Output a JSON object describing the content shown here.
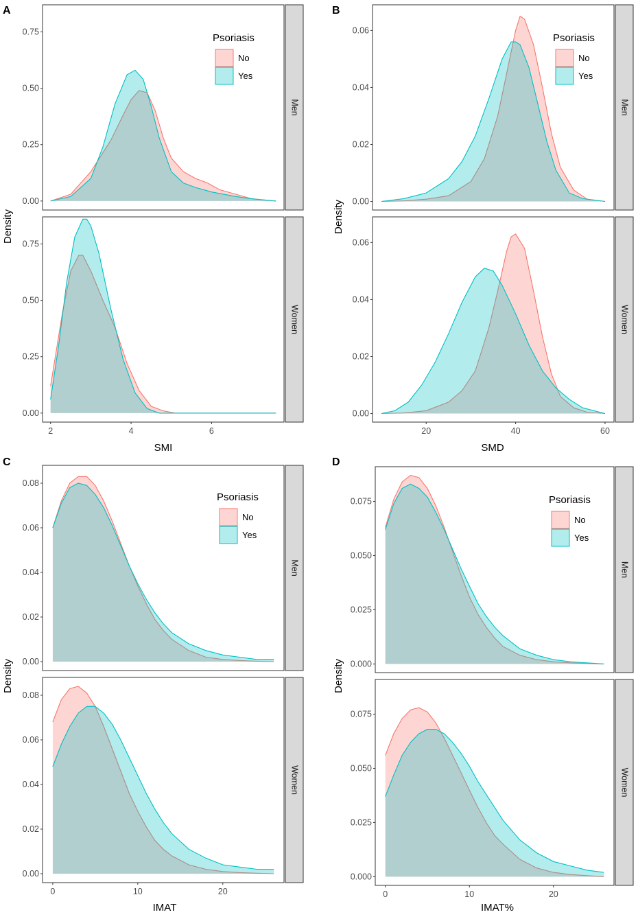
{
  "colors": {
    "no": "#F8766D",
    "yes": "#00BFC4",
    "strip": "#D9D9D9"
  },
  "legend": {
    "title": "Psoriasis",
    "entries": [
      "No",
      "Yes"
    ]
  },
  "ylabel": "Density",
  "chart_data": [
    {
      "panel": "A",
      "type": "area",
      "xlabel": "SMI",
      "xticks": [
        2,
        4,
        6
      ],
      "xlim": [
        1.8,
        7.8
      ],
      "show_legend": true,
      "facets": [
        {
          "strip": "Men",
          "ylim": [
            -0.04,
            0.87
          ],
          "yticks": [
            0.0,
            0.25,
            0.5,
            0.75
          ],
          "decimals": 2,
          "series": [
            {
              "name": "No",
              "x": [
                2.0,
                2.5,
                3.0,
                3.5,
                3.8,
                4.0,
                4.2,
                4.4,
                4.6,
                4.8,
                5.0,
                5.3,
                5.6,
                5.9,
                6.2,
                6.6,
                7.0,
                7.6
              ],
              "y": [
                0.0,
                0.03,
                0.13,
                0.27,
                0.38,
                0.45,
                0.49,
                0.48,
                0.4,
                0.28,
                0.19,
                0.13,
                0.1,
                0.08,
                0.05,
                0.03,
                0.01,
                0.0
              ]
            },
            {
              "name": "Yes",
              "x": [
                2.0,
                2.5,
                3.0,
                3.3,
                3.6,
                3.9,
                4.1,
                4.3,
                4.5,
                4.7,
                5.0,
                5.3,
                5.6,
                6.0,
                6.6,
                7.0,
                7.6
              ],
              "y": [
                0.0,
                0.02,
                0.1,
                0.24,
                0.43,
                0.56,
                0.58,
                0.54,
                0.42,
                0.28,
                0.13,
                0.08,
                0.06,
                0.04,
                0.02,
                0.01,
                0.0
              ]
            }
          ]
        },
        {
          "strip": "Women",
          "ylim": [
            -0.04,
            0.87
          ],
          "yticks": [
            0.0,
            0.25,
            0.5,
            0.75
          ],
          "decimals": 2,
          "series": [
            {
              "name": "No",
              "x": [
                2.0,
                2.3,
                2.5,
                2.7,
                2.8,
                3.0,
                3.3,
                3.6,
                3.9,
                4.2,
                4.5,
                4.8,
                5.1,
                5.5,
                6.0,
                7.6
              ],
              "y": [
                0.12,
                0.45,
                0.63,
                0.7,
                0.7,
                0.63,
                0.5,
                0.38,
                0.22,
                0.1,
                0.03,
                0.01,
                0.0,
                0.0,
                0.0,
                0.0
              ]
            },
            {
              "name": "Yes",
              "x": [
                2.0,
                2.2,
                2.4,
                2.6,
                2.8,
                2.9,
                3.0,
                3.2,
                3.5,
                3.8,
                4.1,
                4.4,
                4.7,
                5.0,
                5.5,
                7.6
              ],
              "y": [
                0.06,
                0.3,
                0.58,
                0.78,
                0.86,
                0.86,
                0.83,
                0.71,
                0.46,
                0.24,
                0.09,
                0.02,
                0.0,
                0.0,
                0.0,
                0.0
              ]
            }
          ]
        }
      ]
    },
    {
      "panel": "B",
      "type": "area",
      "xlabel": "SMD",
      "xticks": [
        20,
        40,
        60
      ],
      "xlim": [
        8,
        62
      ],
      "show_legend": true,
      "facets": [
        {
          "strip": "Men",
          "ylim": [
            -0.003,
            0.069
          ],
          "yticks": [
            0.0,
            0.02,
            0.04,
            0.06
          ],
          "decimals": 2,
          "series": [
            {
              "name": "No",
              "x": [
                10,
                15,
                20,
                25,
                30,
                33,
                36,
                38,
                40,
                41,
                42,
                44,
                46,
                48,
                50,
                53,
                56,
                60
              ],
              "y": [
                0.0,
                0.0002,
                0.0008,
                0.002,
                0.007,
                0.015,
                0.03,
                0.045,
                0.06,
                0.065,
                0.064,
                0.055,
                0.04,
                0.024,
                0.012,
                0.004,
                0.0008,
                0.0
              ]
            },
            {
              "name": "Yes",
              "x": [
                10,
                15,
                20,
                25,
                28,
                31,
                34,
                37,
                39,
                40,
                41,
                43,
                45,
                47,
                49,
                52,
                55,
                60
              ],
              "y": [
                0.0,
                0.001,
                0.003,
                0.008,
                0.014,
                0.023,
                0.036,
                0.05,
                0.056,
                0.056,
                0.055,
                0.047,
                0.034,
                0.021,
                0.011,
                0.003,
                0.001,
                0.0
              ]
            }
          ]
        },
        {
          "strip": "Women",
          "ylim": [
            -0.003,
            0.069
          ],
          "yticks": [
            0.0,
            0.02,
            0.04,
            0.06
          ],
          "decimals": 2,
          "series": [
            {
              "name": "No",
              "x": [
                10,
                15,
                20,
                25,
                28,
                31,
                34,
                36,
                38,
                39,
                40,
                42,
                44,
                46,
                48,
                50,
                53,
                56,
                60
              ],
              "y": [
                0.0,
                0.0002,
                0.001,
                0.004,
                0.008,
                0.015,
                0.03,
                0.043,
                0.057,
                0.062,
                0.063,
                0.058,
                0.043,
                0.027,
                0.014,
                0.006,
                0.002,
                0.0005,
                0.0
              ]
            },
            {
              "name": "Yes",
              "x": [
                10,
                13,
                16,
                19,
                22,
                25,
                28,
                31,
                33,
                35,
                37,
                40,
                43,
                46,
                49,
                52,
                55,
                60
              ],
              "y": [
                0.0,
                0.001,
                0.004,
                0.01,
                0.018,
                0.028,
                0.039,
                0.048,
                0.051,
                0.05,
                0.045,
                0.035,
                0.024,
                0.015,
                0.009,
                0.005,
                0.002,
                0.0
              ]
            }
          ]
        }
      ]
    },
    {
      "panel": "C",
      "type": "area",
      "xlabel": "IMAT",
      "xticks": [
        0,
        10,
        20
      ],
      "xlim": [
        -1.2,
        27.2
      ],
      "show_legend": true,
      "facets": [
        {
          "strip": "Men",
          "ylim": [
            -0.004,
            0.088
          ],
          "yticks": [
            0.0,
            0.02,
            0.04,
            0.06,
            0.08
          ],
          "decimals": 2,
          "series": [
            {
              "name": "No",
              "x": [
                0,
                1,
                2,
                3,
                4,
                5,
                6,
                7,
                8,
                9,
                10,
                11,
                12,
                13,
                14,
                16,
                18,
                20,
                22,
                24,
                26
              ],
              "y": [
                0.06,
                0.072,
                0.08,
                0.083,
                0.083,
                0.079,
                0.072,
                0.063,
                0.053,
                0.043,
                0.034,
                0.026,
                0.019,
                0.014,
                0.01,
                0.005,
                0.002,
                0.001,
                0.0005,
                0.0002,
                0.0
              ]
            },
            {
              "name": "Yes",
              "x": [
                0,
                1,
                2,
                3,
                4,
                5,
                6,
                7,
                8,
                9,
                10,
                11,
                12,
                13,
                14,
                16,
                18,
                20,
                22,
                24,
                26
              ],
              "y": [
                0.06,
                0.071,
                0.078,
                0.08,
                0.079,
                0.075,
                0.069,
                0.061,
                0.052,
                0.043,
                0.035,
                0.028,
                0.022,
                0.017,
                0.013,
                0.008,
                0.005,
                0.003,
                0.002,
                0.001,
                0.001
              ]
            }
          ]
        },
        {
          "strip": "Women",
          "ylim": [
            -0.004,
            0.088
          ],
          "yticks": [
            0.0,
            0.02,
            0.04,
            0.06,
            0.08
          ],
          "decimals": 2,
          "series": [
            {
              "name": "No",
              "x": [
                0,
                1,
                2,
                3,
                4,
                5,
                6,
                7,
                8,
                9,
                10,
                11,
                12,
                13,
                14,
                16,
                18,
                20,
                22,
                24,
                26
              ],
              "y": [
                0.068,
                0.078,
                0.083,
                0.084,
                0.081,
                0.075,
                0.066,
                0.056,
                0.046,
                0.036,
                0.028,
                0.021,
                0.015,
                0.011,
                0.008,
                0.004,
                0.002,
                0.001,
                0.0005,
                0.0002,
                0.0
              ]
            },
            {
              "name": "Yes",
              "x": [
                0,
                1,
                2,
                3,
                4,
                5,
                6,
                7,
                8,
                9,
                10,
                11,
                12,
                13,
                14,
                16,
                18,
                20,
                22,
                24,
                26
              ],
              "y": [
                0.048,
                0.058,
                0.066,
                0.072,
                0.075,
                0.075,
                0.072,
                0.067,
                0.06,
                0.052,
                0.044,
                0.036,
                0.029,
                0.023,
                0.018,
                0.011,
                0.007,
                0.004,
                0.003,
                0.002,
                0.002
              ]
            }
          ]
        }
      ]
    },
    {
      "panel": "D",
      "type": "area",
      "xlabel": "IMAT%",
      "xticks": [
        0,
        10,
        20
      ],
      "xlim": [
        -1.2,
        27.2
      ],
      "show_legend": true,
      "facets": [
        {
          "strip": "Men",
          "ylim": [
            -0.004,
            0.091
          ],
          "yticks": [
            0.0,
            0.025,
            0.05,
            0.075
          ],
          "decimals": 3,
          "series": [
            {
              "name": "No",
              "x": [
                0,
                1,
                2,
                3,
                4,
                5,
                6,
                7,
                8,
                9,
                10,
                11,
                12,
                13,
                14,
                16,
                18,
                20,
                22,
                24,
                26
              ],
              "y": [
                0.063,
                0.076,
                0.084,
                0.087,
                0.086,
                0.081,
                0.073,
                0.063,
                0.052,
                0.041,
                0.031,
                0.023,
                0.017,
                0.012,
                0.008,
                0.004,
                0.002,
                0.001,
                0.0005,
                0.0002,
                0.0
              ]
            },
            {
              "name": "Yes",
              "x": [
                0,
                1,
                2,
                3,
                4,
                5,
                6,
                7,
                8,
                9,
                10,
                11,
                12,
                13,
                14,
                16,
                18,
                20,
                22,
                24,
                26
              ],
              "y": [
                0.062,
                0.074,
                0.081,
                0.083,
                0.081,
                0.077,
                0.07,
                0.062,
                0.053,
                0.044,
                0.036,
                0.028,
                0.022,
                0.017,
                0.013,
                0.007,
                0.004,
                0.002,
                0.001,
                0.0005,
                0.0
              ]
            }
          ]
        },
        {
          "strip": "Women",
          "ylim": [
            -0.004,
            0.091
          ],
          "yticks": [
            0.0,
            0.025,
            0.05,
            0.075
          ],
          "decimals": 3,
          "series": [
            {
              "name": "No",
              "x": [
                0,
                1,
                2,
                3,
                4,
                5,
                6,
                7,
                8,
                9,
                10,
                11,
                12,
                13,
                14,
                16,
                18,
                20,
                22,
                24,
                26
              ],
              "y": [
                0.056,
                0.066,
                0.073,
                0.077,
                0.078,
                0.076,
                0.071,
                0.064,
                0.056,
                0.048,
                0.04,
                0.032,
                0.025,
                0.019,
                0.015,
                0.008,
                0.004,
                0.002,
                0.001,
                0.0005,
                0.0
              ]
            },
            {
              "name": "Yes",
              "x": [
                0,
                1,
                2,
                3,
                4,
                5,
                6,
                7,
                8,
                9,
                10,
                11,
                12,
                13,
                14,
                16,
                18,
                20,
                22,
                24,
                26
              ],
              "y": [
                0.037,
                0.047,
                0.056,
                0.062,
                0.066,
                0.068,
                0.068,
                0.066,
                0.062,
                0.057,
                0.051,
                0.044,
                0.038,
                0.032,
                0.026,
                0.017,
                0.011,
                0.007,
                0.005,
                0.003,
                0.002
              ]
            }
          ]
        }
      ]
    }
  ]
}
